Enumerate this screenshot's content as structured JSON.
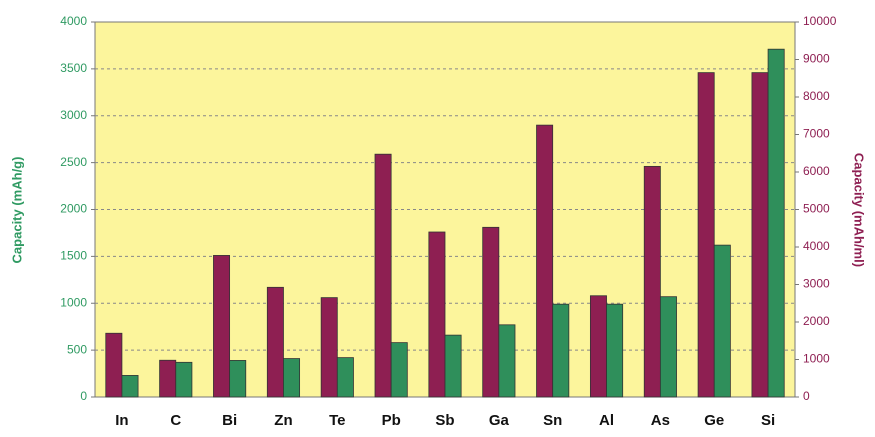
{
  "chart_data": {
    "type": "bar",
    "categories": [
      "In",
      "C",
      "Bi",
      "Zn",
      "Te",
      "Pb",
      "Sb",
      "Ga",
      "Sn",
      "Al",
      "As",
      "Ge",
      "Si"
    ],
    "series": [
      {
        "color": "#8e1f52",
        "axis": "y2",
        "values": [
          1700,
          980,
          3775,
          2925,
          2650,
          6475,
          4400,
          4525,
          7250,
          2700,
          6150,
          8650,
          8650
        ]
      },
      {
        "color": "#2f8f5b",
        "values": [
          230,
          370,
          390,
          410,
          420,
          580,
          660,
          770,
          990,
          990,
          1070,
          1620,
          3710
        ]
      }
    ],
    "ylabel": "Capacity (mAh/g)",
    "y2label": "Capacity (mAh/ml)",
    "ylim": [
      0,
      4000
    ],
    "yticks": [
      0,
      500,
      1000,
      1500,
      2000,
      2500,
      3000,
      3500,
      4000
    ],
    "y2lim": [
      0,
      10000
    ],
    "y2ticks": [
      0,
      1000,
      2000,
      3000,
      4000,
      5000,
      6000,
      7000,
      8000,
      9000,
      10000
    ],
    "grid": true,
    "ycolor": "#2f9a62",
    "y2color": "#8e1f52",
    "background": "#fcf59c"
  }
}
